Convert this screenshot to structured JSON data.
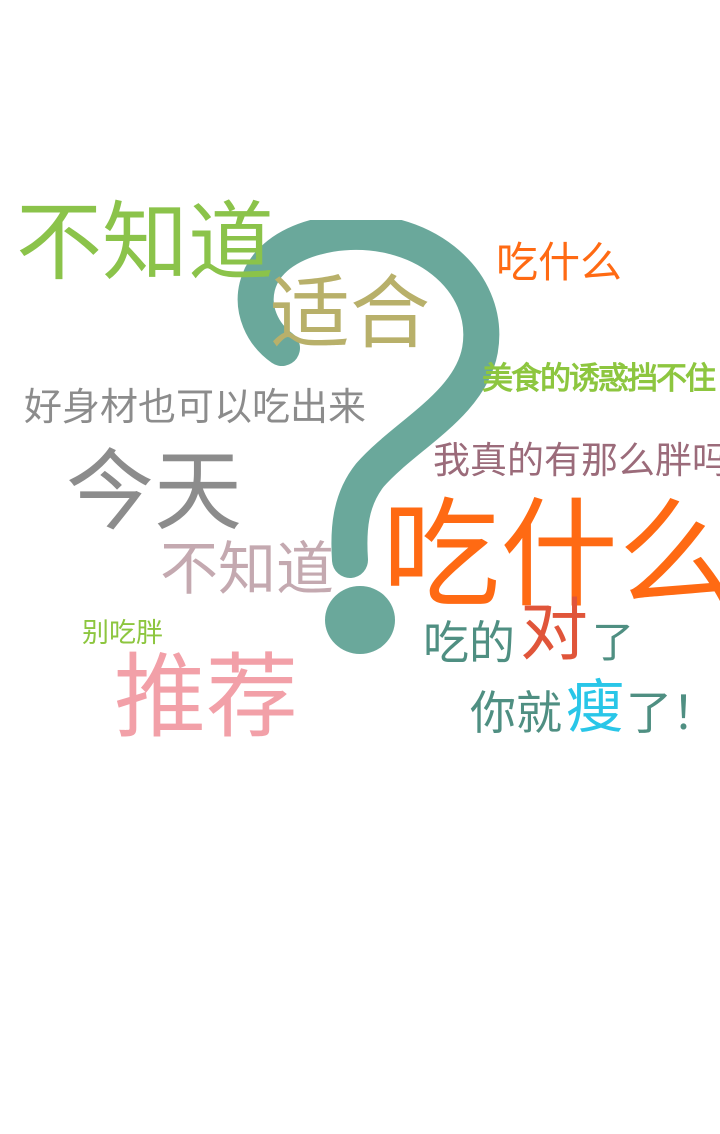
{
  "colors": {
    "question_mark": "#6aa89b",
    "lime": "#8bc34a",
    "olive": "#b8b06a",
    "orange": "#ff6a13",
    "gray": "#8c8c8c",
    "mauve": "#9b6b7a",
    "dusty_pink": "#c4a9b0",
    "pink": "#f2a0a8",
    "teal": "#4f8f82",
    "red": "#e0553a",
    "cyan": "#29c6e8",
    "green_bright": "#8dc63f"
  },
  "icons": {
    "question_mark": "question-mark-icon"
  },
  "words": {
    "bu_zhi_dao_1": "不知道",
    "shi_he": "适合",
    "chi_shen_me_small": "吃什么",
    "mei_shi": "美食的诱惑挡不住",
    "hao_shen_cai": "好身材也可以吃出来",
    "wo_zhen_de": "我真的有那么胖吗",
    "jin_tian": "今天",
    "bu_zhi_dao_2": "不知道",
    "chi_shen_me_big": "吃什么",
    "bie_chi_pang": "别吃胖",
    "chi_de": "吃的",
    "dui": "对",
    "le_1": "了",
    "tui_jian": "推荐",
    "ni_jiu": "你就",
    "shou": "瘦",
    "le_2": "了！"
  }
}
